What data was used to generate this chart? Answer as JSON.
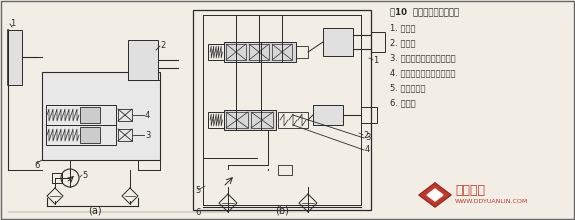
{
  "title": "图10  工作液压系统原理图",
  "legend_items": [
    "1. 转半缸",
    "2. 动臂缸",
    "3. 转斗缸大腔双作用安全阀",
    "4. 转斗缸小腔双作用安全阀",
    "5. 工作液压泵",
    "6. 分配阀"
  ],
  "label_a": "(a)",
  "label_b": "(b)",
  "bg_color": "#f2ede5",
  "line_color": "#2a2a2a",
  "watermark_text": "定鼎园林",
  "watermark_url": "WWW.DDYUANLIN.COM",
  "fig_width": 5.75,
  "fig_height": 2.2,
  "dpi": 100
}
